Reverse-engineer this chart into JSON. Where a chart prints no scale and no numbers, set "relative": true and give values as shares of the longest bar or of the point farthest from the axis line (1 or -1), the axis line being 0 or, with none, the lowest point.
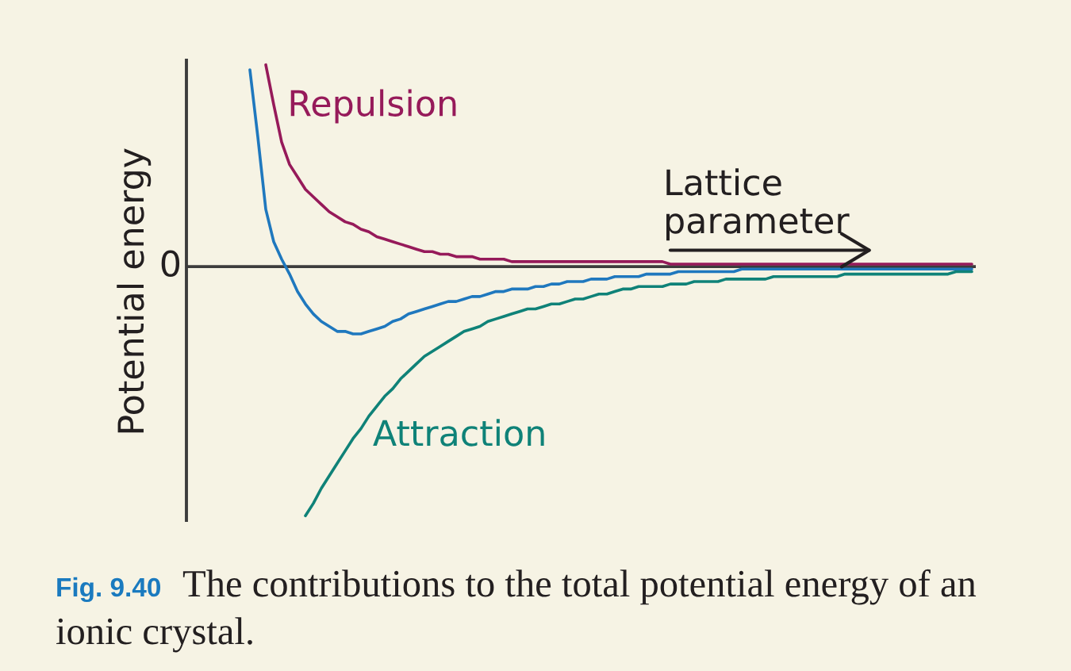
{
  "chart_data": {
    "type": "line",
    "relative": true,
    "categories": [
      null,
      null,
      null,
      null,
      null,
      null,
      null,
      null,
      null,
      null,
      null,
      null,
      null,
      null,
      null,
      null,
      null,
      null,
      null,
      null,
      null,
      null,
      null,
      null,
      null,
      null,
      null,
      null,
      null,
      null,
      null,
      null,
      null,
      null,
      null,
      null,
      null,
      null,
      null,
      null,
      null,
      null,
      null,
      null,
      null,
      null,
      null,
      null,
      null,
      null,
      null,
      null,
      null,
      null,
      null,
      null,
      null,
      null,
      null,
      null,
      null,
      null,
      null,
      null,
      null,
      null,
      null,
      null,
      null,
      null,
      null,
      null,
      null,
      null,
      null,
      null,
      null,
      null,
      null,
      null,
      null,
      null,
      null,
      null,
      null,
      null,
      null,
      null,
      null,
      null,
      null,
      null,
      null,
      null,
      null,
      null,
      null,
      null,
      null,
      null
    ],
    "series": [
      {
        "name": "Repulsion",
        "color": "#961a5a",
        "values": [
          null,
          null,
          null,
          null,
          null,
          null,
          null,
          null,
          null,
          null,
          0.81,
          0.65,
          0.5,
          0.41,
          0.36,
          0.31,
          0.28,
          0.25,
          0.22,
          0.2,
          0.18,
          0.17,
          0.15,
          0.14,
          0.12,
          0.11,
          0.1,
          0.09,
          0.08,
          0.07,
          0.06,
          0.06,
          0.05,
          0.05,
          0.04,
          0.04,
          0.04,
          0.03,
          0.03,
          0.03,
          0.03,
          0.02,
          0.02,
          0.02,
          0.02,
          0.02,
          0.02,
          0.02,
          0.02,
          0.02,
          0.02,
          0.02,
          0.02,
          0.02,
          0.02,
          0.02,
          0.02,
          0.02,
          0.02,
          0.02,
          0.02,
          0.01,
          0.01,
          0.01,
          0.01,
          0.01,
          0.01,
          0.01,
          0.01,
          0.01,
          0.01,
          0.01,
          0.01,
          0.01,
          0.01,
          0.01,
          0.01,
          0.01,
          0.01,
          0.01,
          0.01,
          0.01,
          0.01,
          0.01,
          0.01,
          0.01,
          0.01,
          0.01,
          0.01,
          0.01,
          0.01,
          0.01,
          0.01,
          0.01,
          0.01,
          0.01,
          0.01,
          0.01,
          0.01,
          0.01
        ]
      },
      {
        "color": "#1f78be",
        "values": [
          null,
          null,
          null,
          null,
          null,
          null,
          null,
          null,
          0.79,
          0.52,
          0.23,
          0.1,
          0.03,
          -0.03,
          -0.1,
          -0.15,
          -0.19,
          -0.22,
          -0.24,
          -0.26,
          -0.26,
          -0.27,
          -0.27,
          -0.26,
          -0.25,
          -0.24,
          -0.22,
          -0.21,
          -0.19,
          -0.18,
          -0.17,
          -0.16,
          -0.15,
          -0.14,
          -0.14,
          -0.13,
          -0.12,
          -0.12,
          -0.11,
          -0.1,
          -0.1,
          -0.09,
          -0.09,
          -0.09,
          -0.08,
          -0.08,
          -0.07,
          -0.07,
          -0.06,
          -0.06,
          -0.06,
          -0.05,
          -0.05,
          -0.05,
          -0.04,
          -0.04,
          -0.04,
          -0.04,
          -0.03,
          -0.03,
          -0.03,
          -0.03,
          -0.02,
          -0.02,
          -0.02,
          -0.02,
          -0.02,
          -0.02,
          -0.02,
          -0.02,
          -0.01,
          -0.01,
          -0.01,
          -0.01,
          -0.01,
          -0.01,
          -0.01,
          -0.01,
          -0.01,
          -0.01,
          -0.01,
          -0.01,
          -0.01,
          -0.01,
          -0.01,
          -0.01,
          -0.01,
          -0.01,
          -0.01,
          -0.01,
          -0.01,
          -0.01,
          -0.01,
          -0.01,
          -0.01,
          -0.01,
          -0.01,
          -0.01,
          -0.01,
          -0.01
        ]
      },
      {
        "name": "Attraction",
        "color": "#0f8278",
        "values": [
          null,
          null,
          null,
          null,
          null,
          null,
          null,
          null,
          null,
          null,
          null,
          null,
          null,
          null,
          null,
          -1.0,
          -0.95,
          -0.89,
          -0.84,
          -0.79,
          -0.74,
          -0.69,
          -0.65,
          -0.6,
          -0.56,
          -0.52,
          -0.49,
          -0.45,
          -0.42,
          -0.39,
          -0.36,
          -0.34,
          -0.32,
          -0.3,
          -0.28,
          -0.26,
          -0.25,
          -0.24,
          -0.22,
          -0.21,
          -0.2,
          -0.19,
          -0.18,
          -0.17,
          -0.17,
          -0.16,
          -0.15,
          -0.15,
          -0.14,
          -0.13,
          -0.13,
          -0.12,
          -0.11,
          -0.11,
          -0.1,
          -0.09,
          -0.09,
          -0.08,
          -0.08,
          -0.08,
          -0.08,
          -0.07,
          -0.07,
          -0.07,
          -0.06,
          -0.06,
          -0.06,
          -0.06,
          -0.05,
          -0.05,
          -0.05,
          -0.05,
          -0.05,
          -0.05,
          -0.04,
          -0.04,
          -0.04,
          -0.04,
          -0.04,
          -0.04,
          -0.04,
          -0.04,
          -0.04,
          -0.03,
          -0.03,
          -0.03,
          -0.03,
          -0.03,
          -0.03,
          -0.03,
          -0.03,
          -0.03,
          -0.03,
          -0.03,
          -0.03,
          -0.03,
          -0.03,
          -0.02,
          -0.02,
          -0.02
        ]
      }
    ],
    "ref_lines": [
      {
        "axis": "y",
        "value": 0,
        "label": "0"
      }
    ],
    "xlabel": "Lattice\nparameter",
    "ylabel": "Potential energy",
    "annotations": [
      "Fig. 9.40",
      "The contributions to the total potential energy of an",
      "ionic crystal."
    ]
  }
}
